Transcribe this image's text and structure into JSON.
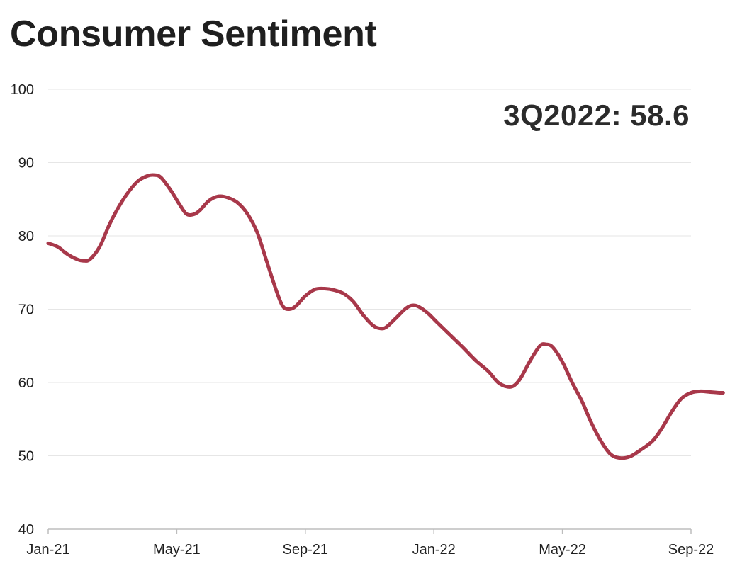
{
  "chart_data": {
    "type": "line",
    "title": "Consumer Sentiment",
    "annotation": "3Q2022: 58.6",
    "xlabel": "",
    "ylabel": "",
    "ylim": [
      40,
      100
    ],
    "yticks": [
      40,
      50,
      60,
      70,
      80,
      90,
      100
    ],
    "xtick_labels": [
      "Jan-21",
      "May-21",
      "Sep-21",
      "Jan-22",
      "May-22",
      "Sep-22"
    ],
    "grid": true,
    "line_color": "#a8384a",
    "series": [
      {
        "values": [
          [
            0.0,
            79.0
          ],
          [
            0.3,
            78.5
          ],
          [
            0.6,
            77.5
          ],
          [
            0.9,
            76.8
          ],
          [
            1.1,
            76.6
          ],
          [
            1.3,
            76.8
          ],
          [
            1.6,
            78.5
          ],
          [
            1.9,
            81.5
          ],
          [
            2.2,
            84.0
          ],
          [
            2.5,
            86.0
          ],
          [
            2.8,
            87.5
          ],
          [
            3.1,
            88.2
          ],
          [
            3.3,
            88.3
          ],
          [
            3.5,
            88.0
          ],
          [
            3.8,
            86.3
          ],
          [
            4.1,
            84.2
          ],
          [
            4.3,
            83.0
          ],
          [
            4.5,
            82.9
          ],
          [
            4.7,
            83.4
          ],
          [
            5.0,
            84.8
          ],
          [
            5.3,
            85.4
          ],
          [
            5.6,
            85.2
          ],
          [
            5.9,
            84.5
          ],
          [
            6.2,
            83.0
          ],
          [
            6.5,
            80.5
          ],
          [
            6.8,
            76.5
          ],
          [
            7.1,
            72.5
          ],
          [
            7.3,
            70.4
          ],
          [
            7.5,
            70.0
          ],
          [
            7.7,
            70.4
          ],
          [
            8.0,
            71.8
          ],
          [
            8.3,
            72.7
          ],
          [
            8.6,
            72.8
          ],
          [
            8.9,
            72.6
          ],
          [
            9.2,
            72.1
          ],
          [
            9.5,
            71.0
          ],
          [
            9.8,
            69.2
          ],
          [
            10.1,
            67.8
          ],
          [
            10.3,
            67.4
          ],
          [
            10.5,
            67.5
          ],
          [
            10.8,
            68.7
          ],
          [
            11.1,
            70.0
          ],
          [
            11.3,
            70.5
          ],
          [
            11.5,
            70.4
          ],
          [
            11.8,
            69.5
          ],
          [
            12.1,
            68.2
          ],
          [
            12.5,
            66.5
          ],
          [
            12.9,
            64.8
          ],
          [
            13.3,
            63.0
          ],
          [
            13.7,
            61.5
          ],
          [
            14.0,
            60.0
          ],
          [
            14.3,
            59.4
          ],
          [
            14.5,
            59.6
          ],
          [
            14.7,
            60.6
          ],
          [
            15.0,
            63.0
          ],
          [
            15.3,
            65.0
          ],
          [
            15.5,
            65.2
          ],
          [
            15.7,
            64.8
          ],
          [
            16.0,
            62.8
          ],
          [
            16.3,
            60.0
          ],
          [
            16.6,
            57.5
          ],
          [
            16.9,
            54.5
          ],
          [
            17.2,
            52.0
          ],
          [
            17.5,
            50.2
          ],
          [
            17.8,
            49.7
          ],
          [
            18.1,
            49.9
          ],
          [
            18.4,
            50.7
          ],
          [
            18.8,
            52.0
          ],
          [
            19.1,
            53.8
          ],
          [
            19.4,
            56.0
          ],
          [
            19.7,
            57.8
          ],
          [
            20.0,
            58.6
          ],
          [
            20.3,
            58.8
          ],
          [
            20.6,
            58.7
          ],
          [
            20.9,
            58.6
          ],
          [
            21.0,
            58.6
          ]
        ]
      }
    ]
  }
}
